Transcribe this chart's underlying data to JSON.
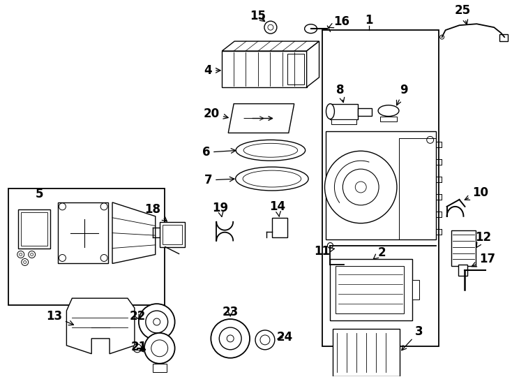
{
  "bg_color": "#ffffff",
  "line_color": "#000000",
  "fig_width": 7.34,
  "fig_height": 5.4,
  "dpi": 100,
  "lw": 1.0,
  "font_size": 12,
  "font_size_sm": 10
}
